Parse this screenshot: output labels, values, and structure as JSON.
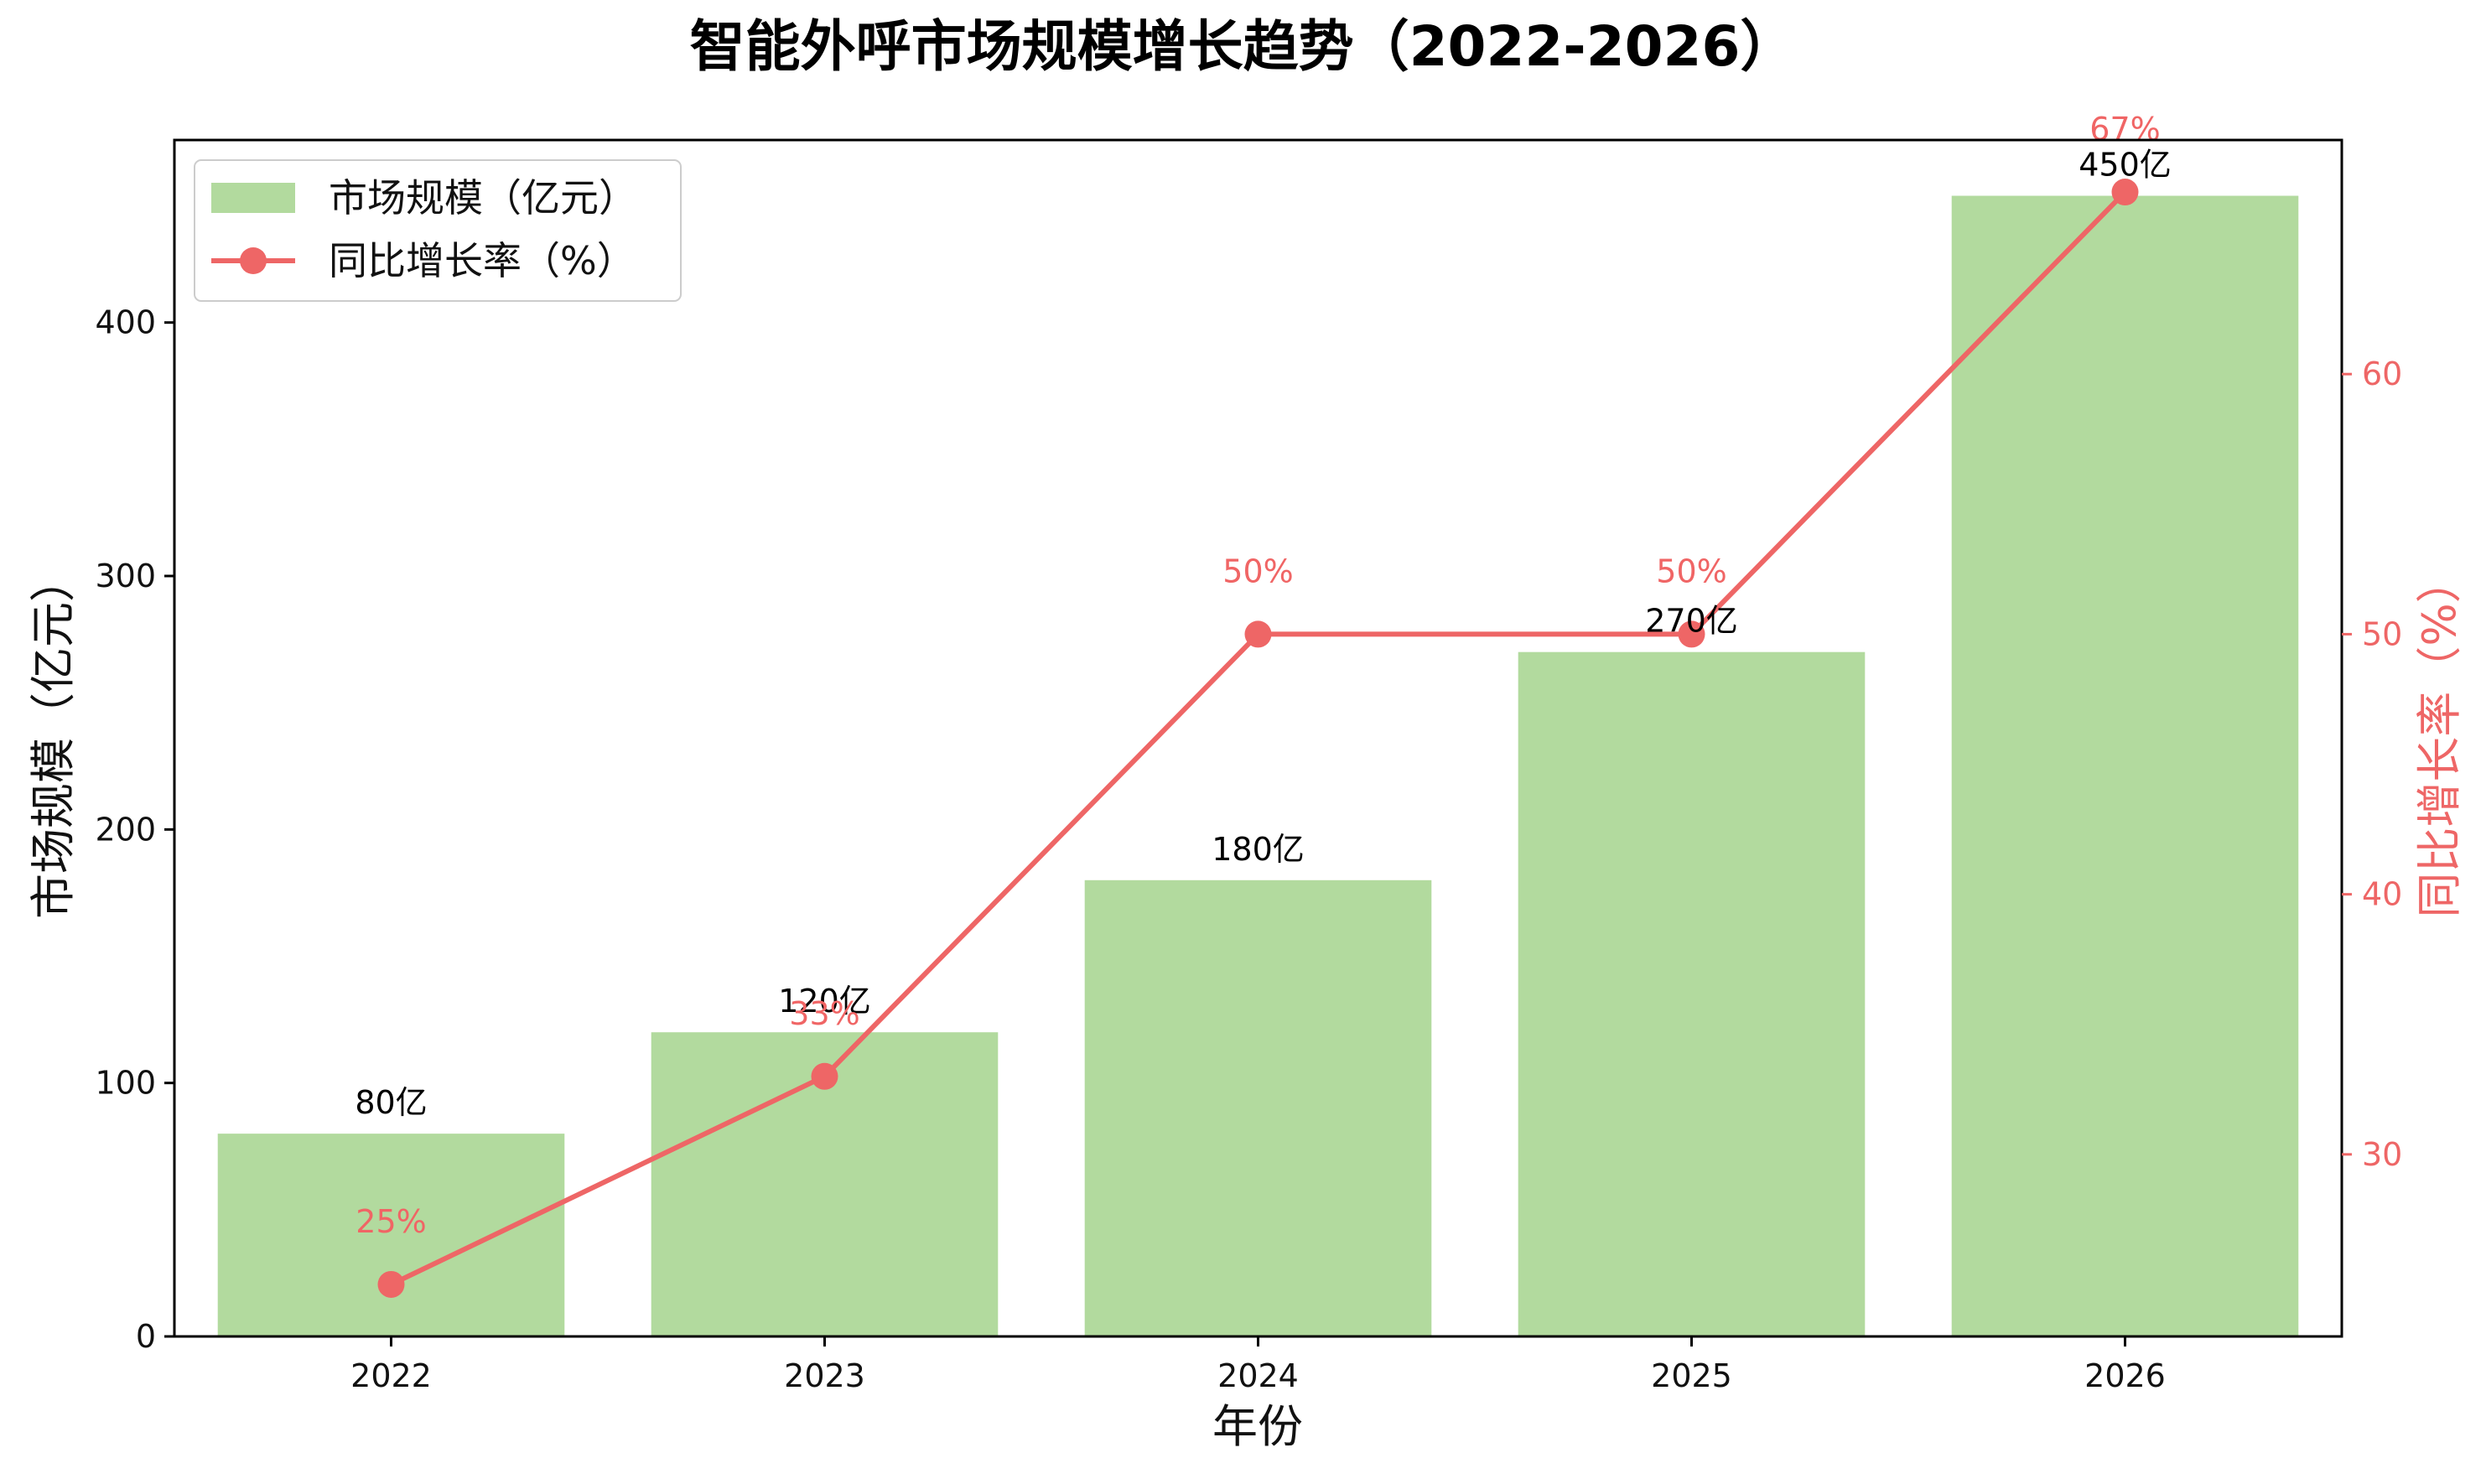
{
  "chart_data": {
    "type": "bar",
    "title": "智能外呼市场规模增长趋势（2022-2026）",
    "xlabel": "年份",
    "ylabel": "市场规模（亿元）",
    "y2label": "同比增长率（%）",
    "categories": [
      "2022",
      "2023",
      "2024",
      "2025",
      "2026"
    ],
    "series": [
      {
        "name": "市场规模（亿元）",
        "type": "bar",
        "axis": "left",
        "color": "#b2da9e",
        "values": [
          80,
          120,
          180,
          270,
          450
        ],
        "labels": [
          "80亿",
          "120亿",
          "180亿",
          "270亿",
          "450亿"
        ]
      },
      {
        "name": "同比增长率（%）",
        "type": "line",
        "axis": "right",
        "color": "#ee6666",
        "values": [
          25,
          33,
          50,
          50,
          67
        ],
        "labels": [
          "25%",
          "33%",
          "50%",
          "50%",
          "67%"
        ]
      }
    ],
    "ylim": [
      0,
      472
    ],
    "y2lim": [
      23,
      69
    ],
    "yticks": [
      0,
      100,
      200,
      300,
      400
    ],
    "y2ticks": [
      30,
      40,
      50,
      60
    ],
    "legend": "top-left",
    "grid": false
  }
}
